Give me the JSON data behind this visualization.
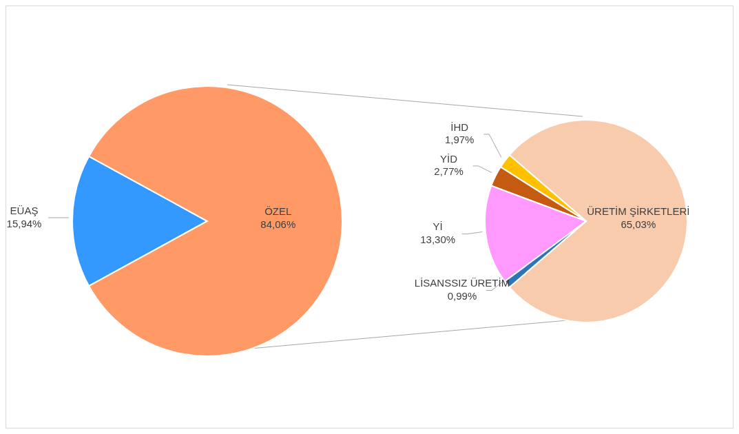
{
  "chart_data": [
    {
      "type": "pie",
      "categories": [
        "EÜAŞ",
        "ÖZEL"
      ],
      "values": [
        15.94,
        84.06
      ],
      "colors": [
        "#3399ff",
        "#ff9966"
      ],
      "value_labels": [
        "15,94%",
        "84,06%"
      ]
    },
    {
      "type": "pie",
      "categories": [
        "ÜRETİM ŞİRKETLERİ",
        "İHD",
        "YİD",
        "Yİ",
        "LİSANSSIZ ÜRETİM"
      ],
      "values": [
        65.03,
        1.97,
        2.77,
        13.3,
        0.99
      ],
      "colors": [
        "#f8cbad",
        "#ffc000",
        "#c55a11",
        "#ff99ff",
        "#2e75b6"
      ],
      "value_labels": [
        "65,03%",
        "1,97%",
        "2,77%",
        "13,30%",
        "0,99%"
      ]
    }
  ]
}
